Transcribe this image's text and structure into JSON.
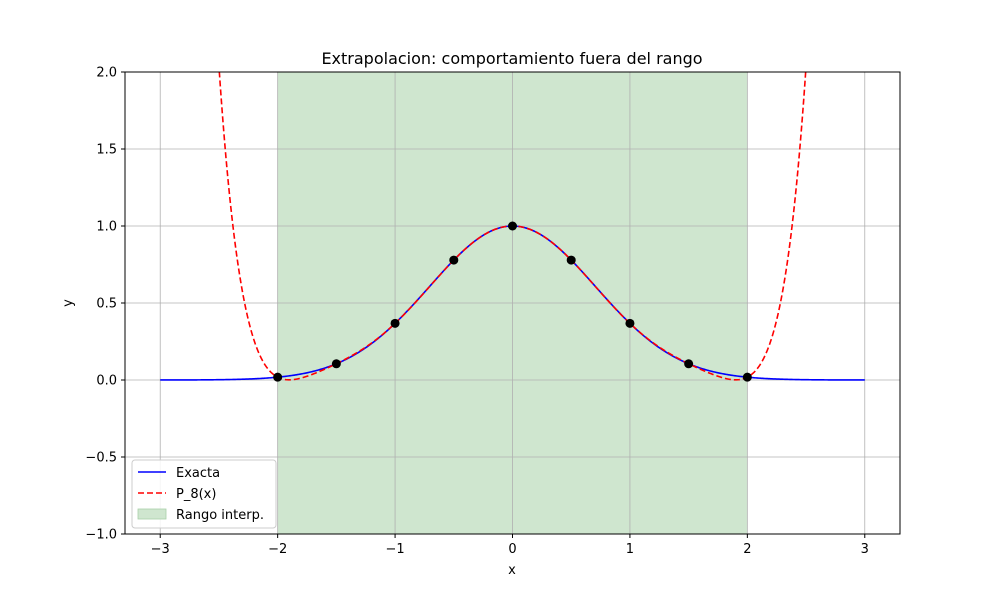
{
  "chart_data": {
    "type": "line",
    "title": "Extrapolacion: comportamiento fuera del rango",
    "xlabel": "x",
    "ylabel": "y",
    "xlim": [
      -3.3,
      3.3
    ],
    "ylim": [
      -1.0,
      2.0
    ],
    "xticks": [
      -3,
      -2,
      -1,
      0,
      1,
      2,
      3
    ],
    "xtick_labels": [
      "−3",
      "−2",
      "−1",
      "0",
      "1",
      "2",
      "3"
    ],
    "yticks": [
      -1.0,
      -0.5,
      0.0,
      0.5,
      1.0,
      1.5,
      2.0
    ],
    "ytick_labels": [
      "−1.0",
      "−0.5",
      "0.0",
      "0.5",
      "1.0",
      "1.5",
      "2.0"
    ],
    "grid": true,
    "legend_position": "lower-left",
    "shaded_region": {
      "name": "Rango interp.",
      "x_range": [
        -2,
        2
      ],
      "color": "#cfe6cf"
    },
    "series": [
      {
        "name": "Exacta",
        "function": "exp(-x^2)",
        "x_range": [
          -3,
          3
        ],
        "color": "#0000ff",
        "style": "solid"
      },
      {
        "name": "P_8(x)",
        "function": "8th-degree interpolant of exp(-x^2) at nodes",
        "x_range": [
          -3,
          3
        ],
        "color": "#ff0000",
        "style": "dashed"
      }
    ],
    "nodes": {
      "x": [
        -2,
        -1.5,
        -1,
        -0.5,
        0,
        0.5,
        1,
        1.5,
        2
      ],
      "y": [
        0.0183,
        0.1054,
        0.3679,
        0.7788,
        1.0,
        0.7788,
        0.3679,
        0.1054,
        0.0183
      ],
      "color": "#000000"
    }
  }
}
